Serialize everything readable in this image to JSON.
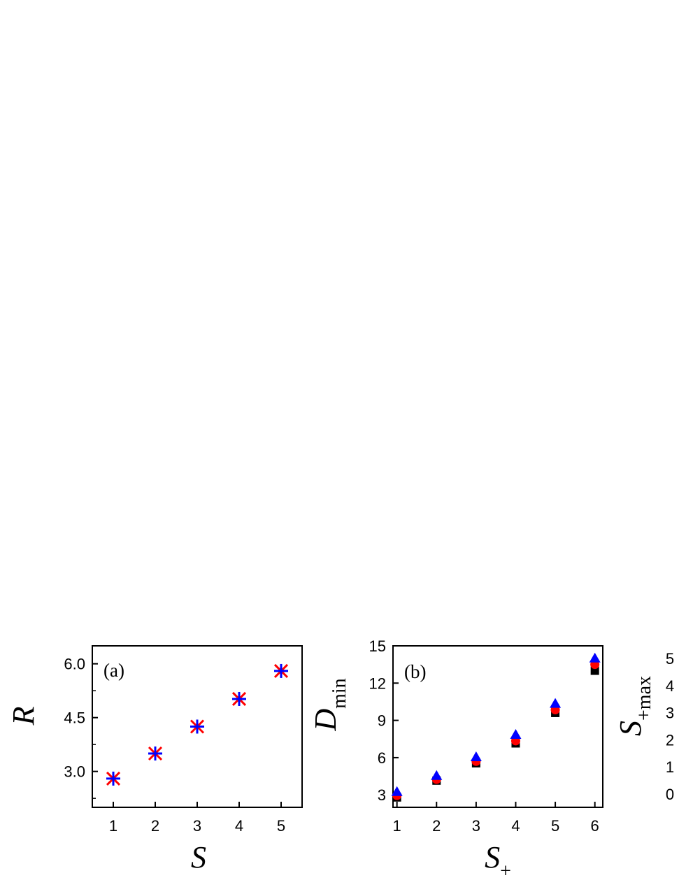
{
  "colors": {
    "red": "#ff0000",
    "blue": "#0000ff",
    "black": "#000000"
  },
  "chart_data": [
    {
      "type": "scatter",
      "panel_label": "(a)",
      "xlabel": "S",
      "ylabel": "R",
      "xlim": [
        0.5,
        5.5
      ],
      "ylim": [
        2.0,
        6.5
      ],
      "xticks": [
        "1",
        "2",
        "3",
        "4",
        "5"
      ],
      "yticks": [
        "3.0",
        "4.5",
        "6.0"
      ],
      "series": [
        {
          "marker": "star",
          "color": "red",
          "x": [
            1,
            2,
            3,
            4,
            5
          ],
          "y": [
            2.8,
            3.5,
            4.25,
            5.02,
            5.8
          ]
        },
        {
          "marker": "cross",
          "color": "blue",
          "x": [
            1,
            2,
            3,
            4,
            5
          ],
          "y": [
            2.8,
            3.5,
            4.25,
            5.02,
            5.8
          ]
        }
      ]
    },
    {
      "type": "scatter",
      "panel_label": "(b)",
      "xlabel": "S",
      "xlabel_sub": "+",
      "ylabel": "D",
      "ylabel_sub": "min",
      "xlim": [
        0.9,
        6.2
      ],
      "ylim": [
        2.0,
        15.0
      ],
      "xticks": [
        "1",
        "2",
        "3",
        "4",
        "5",
        "6"
      ],
      "yticks": [
        "3",
        "6",
        "9",
        "12",
        "15"
      ],
      "series": [
        {
          "marker": "square",
          "color": "black",
          "x": [
            1,
            2,
            3,
            4,
            5,
            6
          ],
          "y": [
            2.8,
            4.15,
            5.55,
            7.15,
            9.6,
            13.0
          ]
        },
        {
          "marker": "circle",
          "color": "red",
          "x": [
            1,
            2,
            3,
            4,
            5,
            6
          ],
          "y": [
            2.95,
            4.25,
            5.7,
            7.35,
            9.85,
            13.5
          ]
        },
        {
          "marker": "triangle",
          "color": "blue",
          "x": [
            1,
            2,
            3,
            4,
            5,
            6
          ],
          "y": [
            3.25,
            4.55,
            6.05,
            7.85,
            10.35,
            14.0
          ]
        }
      ],
      "right_axis": {
        "label": "S",
        "label_sub": "+max",
        "ticks": [
          "0",
          "1",
          "2",
          "3",
          "4",
          "5"
        ]
      }
    }
  ]
}
